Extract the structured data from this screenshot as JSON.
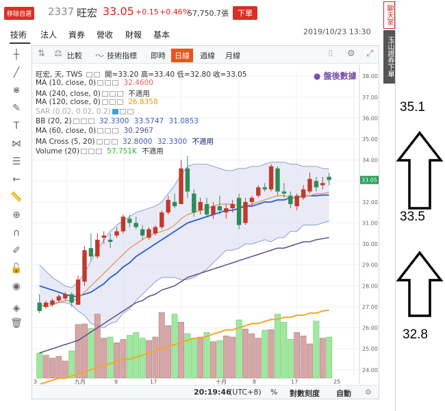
{
  "header": {
    "tag": "移除自選",
    "code": "2337",
    "name": "旺宏",
    "price": "33.05",
    "change": "+0.15",
    "change_pct": "+0.46%",
    "volume": "57,750.7張",
    "order_button": "下單",
    "datetime": "2019/10/23 13:30"
  },
  "nav": {
    "items": [
      "技術",
      "法人",
      "資券",
      "營收",
      "財報",
      "基本"
    ],
    "active": "技術"
  },
  "chart_toolbar": {
    "compare": "比較",
    "indicators": "技術指標",
    "periods": [
      "即時",
      "日線",
      "週線",
      "月線"
    ],
    "active_period": "日線"
  },
  "legend": {
    "main": {
      "label": "旺宏, 天, TWS",
      "open": "開=33.20",
      "high": "高=33.40",
      "low": "低=32.80",
      "close": "收=33.05"
    },
    "ma10": {
      "label": "MA (10, close, 0)",
      "value": "32.4600",
      "color": "#e06060"
    },
    "ma240": {
      "label": "MA (240, close, 0)",
      "value": "不適用"
    },
    "ma120": {
      "label": "MA (120, close, 0)",
      "value": "26.8358",
      "color": "#f5a623"
    },
    "sar": {
      "label": "SAR (0.02, 0.02, 0.2)"
    },
    "bb": {
      "label": "BB (20, 2)",
      "v1": "32.3300",
      "v2": "33.5747",
      "v3": "31.0853",
      "color": "#3c5bbf"
    },
    "ma60": {
      "label": "MA (60, close, 0)",
      "value": "30.2967",
      "color": "#5b4a8a"
    },
    "macross": {
      "label": "MA Cross (5, 20)",
      "v1": "32.8000",
      "v2": "32.3300",
      "v3": "不適用",
      "color": "#3c5bbf"
    },
    "volume": {
      "label": "Volume (20)",
      "value": "57.751K",
      "v2": "不適用",
      "color": "#29b829"
    }
  },
  "watermark": "盤後數據",
  "bottom_bar": {
    "time": "20:19:46",
    "tz": "(UTC+8)",
    "pct": "%",
    "log": "對數刻度",
    "auto": "自動"
  },
  "right_sidebar": {
    "tab1": "聊天室",
    "tab2": "玉山證券下單"
  },
  "annotations": {
    "top_value": "35.1",
    "mid_value": "33.5",
    "bottom_value": "32.8"
  },
  "colors": {
    "up": "#c0392b",
    "down": "#2e8b57",
    "up_vol": "#d6a6a6",
    "down_vol": "#9fe89f",
    "bb_fill": "#dcdcf0"
  },
  "chart_data": {
    "type": "candlestick",
    "y_axis_ticks": [
      "38.00",
      "37.00",
      "36.00",
      "35.00",
      "34.00",
      "33.00",
      "32.00",
      "31.00",
      "30.00",
      "29.00",
      "28.00",
      "27.00",
      "26.00",
      "25.00",
      "24.00"
    ],
    "ylim": [
      23.6,
      38.3
    ],
    "last_price_label": "33.05",
    "x_tick_labels": [
      "3",
      "九月",
      "9",
      "17",
      "十月",
      "8",
      "17",
      "25"
    ],
    "ohlc": [
      [
        27.2,
        27.6,
        26.7,
        26.8
      ],
      [
        27.0,
        27.3,
        26.9,
        27.2
      ],
      [
        27.1,
        27.4,
        27.0,
        27.3
      ],
      [
        27.3,
        27.6,
        27.2,
        27.5
      ],
      [
        27.4,
        27.7,
        27.3,
        27.6
      ],
      [
        27.6,
        27.7,
        27.0,
        27.2
      ],
      [
        27.1,
        28.5,
        27.1,
        28.3
      ],
      [
        28.2,
        29.9,
        28.0,
        29.7
      ],
      [
        29.8,
        30.5,
        29.2,
        29.4
      ],
      [
        29.4,
        30.5,
        29.3,
        30.2
      ],
      [
        30.3,
        30.6,
        30.0,
        30.4
      ],
      [
        30.2,
        30.5,
        29.8,
        30.1
      ],
      [
        30.4,
        30.8,
        30.3,
        30.6
      ],
      [
        30.6,
        31.4,
        30.5,
        31.3
      ],
      [
        31.2,
        31.4,
        30.8,
        31.0
      ],
      [
        31.0,
        31.3,
        30.7,
        30.8
      ],
      [
        30.7,
        30.9,
        30.2,
        30.4
      ],
      [
        30.3,
        30.8,
        30.2,
        30.7
      ],
      [
        30.5,
        30.9,
        30.4,
        30.8
      ],
      [
        30.8,
        31.6,
        30.7,
        31.5
      ],
      [
        31.5,
        32.3,
        31.4,
        32.1
      ],
      [
        32.0,
        32.4,
        31.7,
        31.8
      ],
      [
        31.9,
        34.0,
        31.9,
        33.6
      ],
      [
        33.6,
        34.2,
        32.2,
        32.5
      ],
      [
        32.4,
        32.6,
        31.3,
        31.5
      ],
      [
        31.6,
        32.2,
        31.4,
        32.0
      ],
      [
        31.9,
        32.2,
        31.3,
        31.4
      ],
      [
        31.4,
        32.0,
        31.2,
        31.8
      ],
      [
        31.8,
        32.3,
        31.4,
        31.6
      ],
      [
        31.5,
        31.9,
        31.2,
        31.7
      ],
      [
        31.7,
        32.1,
        31.5,
        31.9
      ],
      [
        32.2,
        32.4,
        30.7,
        30.9
      ],
      [
        31.0,
        32.2,
        30.9,
        32.0
      ],
      [
        32.0,
        32.3,
        31.8,
        32.2
      ],
      [
        32.3,
        32.8,
        32.2,
        32.7
      ],
      [
        32.7,
        32.9,
        32.5,
        32.6
      ],
      [
        32.6,
        33.8,
        32.5,
        33.7
      ],
      [
        33.6,
        33.7,
        32.3,
        32.5
      ],
      [
        32.5,
        32.9,
        32.2,
        32.4
      ],
      [
        32.3,
        32.5,
        31.7,
        31.9
      ],
      [
        31.8,
        32.4,
        31.6,
        32.3
      ],
      [
        32.2,
        32.8,
        32.1,
        32.6
      ],
      [
        32.5,
        33.4,
        32.4,
        33.1
      ],
      [
        33.0,
        33.2,
        32.5,
        32.7
      ],
      [
        32.8,
        33.2,
        32.6,
        32.9
      ],
      [
        33.2,
        33.4,
        32.8,
        33.05
      ]
    ],
    "volume": [
      44,
      40,
      35,
      38,
      30,
      48,
      94,
      95,
      87,
      112,
      70,
      72,
      62,
      68,
      75,
      80,
      70,
      66,
      72,
      115,
      92,
      112,
      98,
      78,
      70,
      72,
      80,
      64,
      66,
      74,
      72,
      102,
      86,
      78,
      70,
      84,
      85,
      112,
      98,
      68,
      80,
      74,
      60,
      100,
      70,
      72
    ],
    "ma10": [
      27.1,
      27.0,
      27.1,
      27.2,
      27.3,
      27.3,
      27.4,
      27.7,
      28.0,
      28.3,
      28.6,
      28.9,
      29.2,
      29.5,
      29.8,
      30.0,
      30.2,
      30.4,
      30.5,
      30.6,
      30.7,
      30.9,
      31.2,
      31.4,
      31.5,
      31.6,
      31.7,
      31.8,
      31.9,
      31.9,
      31.9,
      31.8,
      31.8,
      31.9,
      32.0,
      32.1,
      32.2,
      32.3,
      32.3,
      32.2,
      32.2,
      32.3,
      32.3,
      32.4,
      32.4,
      32.46
    ],
    "ma20": [
      28.0,
      27.9,
      27.8,
      27.7,
      27.6,
      27.5,
      27.5,
      27.6,
      27.7,
      27.9,
      28.1,
      28.4,
      28.6,
      28.9,
      29.1,
      29.4,
      29.6,
      29.8,
      30.0,
      30.2,
      30.4,
      30.6,
      30.8,
      31.0,
      31.1,
      31.2,
      31.3,
      31.4,
      31.5,
      31.6,
      31.6,
      31.7,
      31.8,
      31.8,
      31.9,
      32.0,
      32.0,
      32.1,
      32.1,
      32.2,
      32.2,
      32.3,
      32.3,
      32.3,
      32.33,
      32.33
    ],
    "bb_upper": [
      29.0,
      28.7,
      28.4,
      28.2,
      28.0,
      27.9,
      28.2,
      28.6,
      29.2,
      29.7,
      30.2,
      30.6,
      30.9,
      31.1,
      31.3,
      31.5,
      31.6,
      31.7,
      31.8,
      32.0,
      32.4,
      32.8,
      33.3,
      33.7,
      33.8,
      33.8,
      33.8,
      33.7,
      33.6,
      33.5,
      33.5,
      33.6,
      33.6,
      33.7,
      33.7,
      33.8,
      33.9,
      33.9,
      33.9,
      33.8,
      33.8,
      33.7,
      33.7,
      33.7,
      33.6,
      33.57
    ],
    "bb_lower": [
      27.0,
      27.1,
      27.2,
      27.2,
      27.2,
      27.1,
      26.8,
      26.6,
      26.2,
      26.1,
      26.0,
      26.2,
      26.3,
      26.7,
      26.9,
      27.3,
      27.6,
      27.9,
      28.2,
      28.4,
      28.4,
      28.4,
      28.3,
      28.3,
      28.4,
      28.6,
      28.8,
      29.1,
      29.4,
      29.7,
      29.7,
      29.8,
      30.0,
      30.0,
      30.1,
      30.2,
      30.1,
      30.3,
      30.3,
      30.6,
      30.6,
      30.9,
      30.9,
      30.9,
      31.0,
      31.09
    ],
    "ma60": [
      24.8,
      24.9,
      25.0,
      25.1,
      25.2,
      25.3,
      25.4,
      25.6,
      25.8,
      26.0,
      26.2,
      26.4,
      26.6,
      26.8,
      27.0,
      27.2,
      27.3,
      27.5,
      27.6,
      27.8,
      27.9,
      28.0,
      28.2,
      28.4,
      28.5,
      28.6,
      28.7,
      28.8,
      28.9,
      29.0,
      29.1,
      29.2,
      29.3,
      29.4,
      29.5,
      29.6,
      29.7,
      29.8,
      29.8,
      29.9,
      30.0,
      30.1,
      30.1,
      30.2,
      30.25,
      30.3
    ],
    "ma120": [
      23.3,
      23.4,
      23.5,
      23.6,
      23.6,
      23.7,
      23.8,
      23.9,
      24.0,
      24.1,
      24.2,
      24.3,
      24.4,
      24.5,
      24.5,
      24.6,
      24.7,
      24.8,
      24.9,
      25.0,
      25.1,
      25.2,
      25.3,
      25.4,
      25.5,
      25.5,
      25.6,
      25.7,
      25.8,
      25.9,
      25.9,
      26.0,
      26.1,
      26.2,
      26.2,
      26.3,
      26.4,
      26.4,
      26.5,
      26.5,
      26.6,
      26.6,
      26.7,
      26.7,
      26.8,
      26.84
    ]
  }
}
